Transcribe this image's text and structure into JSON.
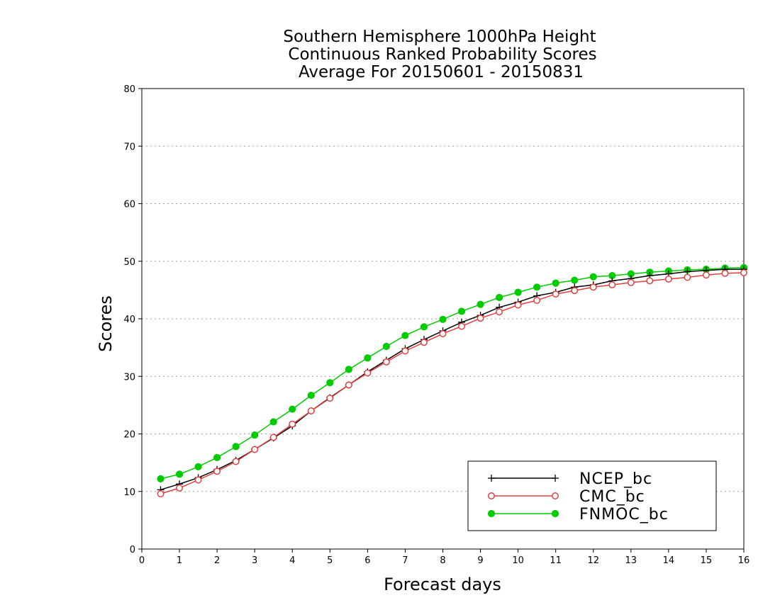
{
  "chart_data": {
    "type": "line",
    "title": [
      "Southern Hemisphere 1000hPa Height",
      "Continuous Ranked Probability Scores",
      "Average For 20150601 - 20150831"
    ],
    "xlabel": "Forecast days",
    "ylabel": "Scores",
    "xlim": [
      0,
      16
    ],
    "ylim": [
      0,
      80
    ],
    "xticks": [
      "0",
      "1",
      "2",
      "3",
      "4",
      "5",
      "6",
      "7",
      "8",
      "9",
      "10",
      "11",
      "12",
      "13",
      "14",
      "15",
      "16"
    ],
    "yticks": [
      "0",
      "10",
      "20",
      "30",
      "40",
      "50",
      "60",
      "70",
      "80"
    ],
    "grid": "horizontal dotted",
    "legend_position": "bottom-right",
    "x": [
      0.5,
      1,
      1.5,
      2,
      2.5,
      3,
      3.5,
      4,
      4.5,
      5,
      5.5,
      6,
      6.5,
      7,
      7.5,
      8,
      8.5,
      9,
      9.5,
      10,
      10.5,
      11,
      11.5,
      12,
      12.5,
      13,
      13.5,
      14,
      14.5,
      15,
      15.5,
      16
    ],
    "series": [
      {
        "name": "NCEP_bc",
        "color": "#000000",
        "marker": "plus",
        "values": [
          10.3,
          11.3,
          12.4,
          13.8,
          15.4,
          17.3,
          19.3,
          21.4,
          24.0,
          26.3,
          28.5,
          30.8,
          32.8,
          34.8,
          36.4,
          37.9,
          39.4,
          40.6,
          42.0,
          42.9,
          44.0,
          44.6,
          45.5,
          45.9,
          46.6,
          47.0,
          47.5,
          47.8,
          48.2,
          48.4,
          48.6,
          48.6
        ]
      },
      {
        "name": "CMC_bc",
        "color": "#e04040",
        "marker": "open-circle",
        "values": [
          9.6,
          10.6,
          12.0,
          13.5,
          15.2,
          17.3,
          19.4,
          21.7,
          24.0,
          26.2,
          28.5,
          30.6,
          32.5,
          34.4,
          35.9,
          37.4,
          38.7,
          40.1,
          41.2,
          42.4,
          43.2,
          44.3,
          44.9,
          45.5,
          45.9,
          46.3,
          46.6,
          46.9,
          47.2,
          47.6,
          47.9,
          48.0
        ]
      },
      {
        "name": "FNMOC_bc",
        "color": "#00cc00",
        "marker": "filled-circle",
        "values": [
          12.2,
          13.0,
          14.3,
          15.9,
          17.8,
          19.8,
          22.1,
          24.3,
          26.7,
          28.9,
          31.2,
          33.2,
          35.2,
          37.1,
          38.6,
          39.9,
          41.3,
          42.5,
          43.7,
          44.6,
          45.5,
          46.2,
          46.7,
          47.3,
          47.5,
          47.8,
          48.1,
          48.3,
          48.5,
          48.6,
          48.8,
          48.9
        ]
      }
    ]
  }
}
